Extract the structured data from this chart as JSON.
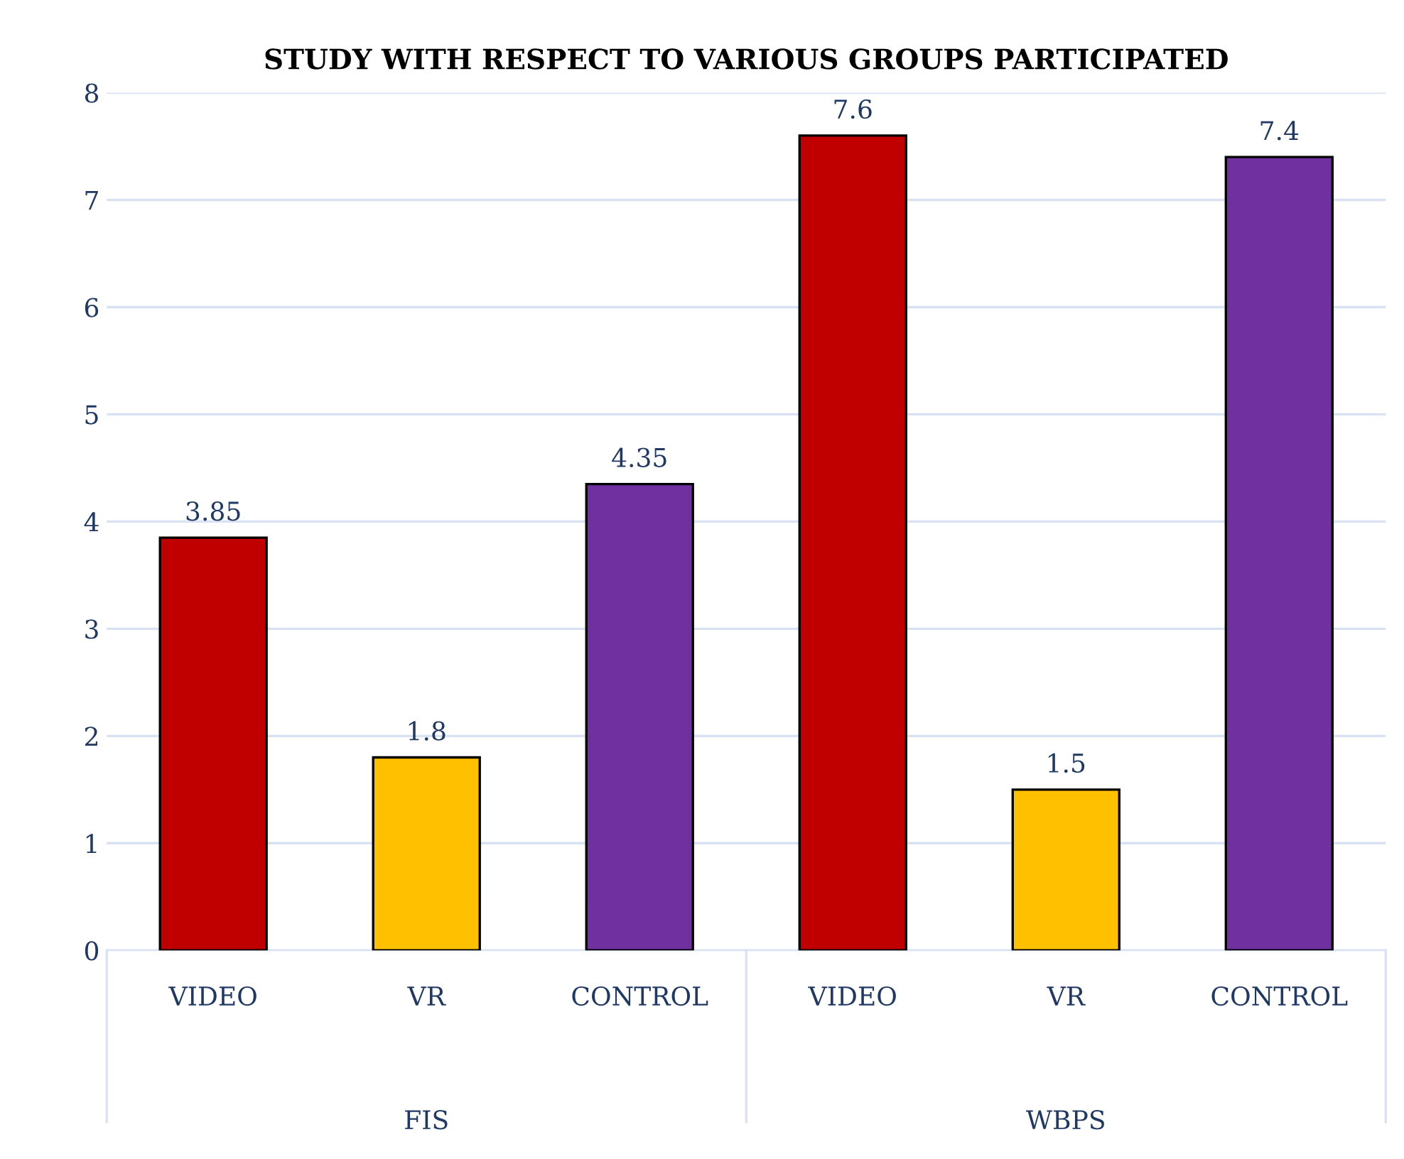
{
  "chart_data": {
    "type": "bar",
    "title": "STUDY WITH RESPECT TO VARIOUS GROUPS PARTICIPATED",
    "categories": [
      "VIDEO",
      "VR",
      "CONTROL",
      "VIDEO",
      "VR",
      "CONTROL"
    ],
    "values": [
      3.85,
      1.8,
      4.35,
      7.6,
      1.5,
      7.4
    ],
    "colors": [
      "#c00000",
      "#ffc000",
      "#7030a0",
      "#c00000",
      "#ffc000",
      "#7030a0"
    ],
    "ylim": [
      0,
      8
    ],
    "yticks": [
      0,
      1,
      2,
      3,
      4,
      5,
      6,
      7,
      8
    ],
    "grid": "y",
    "data_labels": true,
    "annotations": [
      "FIS",
      "WBPS"
    ]
  }
}
